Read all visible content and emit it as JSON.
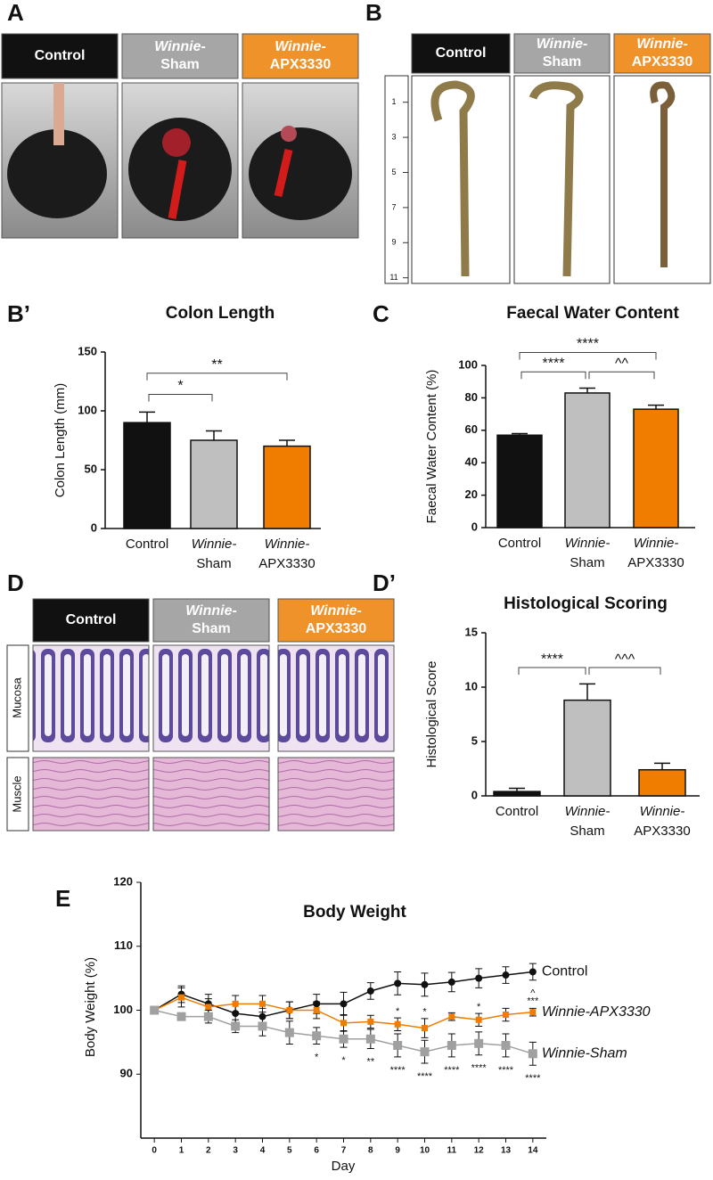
{
  "panels": {
    "A": {
      "letter": "A",
      "headers": [
        [
          "Control"
        ],
        [
          "Winnie-",
          "Sham"
        ],
        [
          "Winnie-",
          "APX3330"
        ]
      ]
    },
    "B": {
      "letter": "B",
      "headers": [
        [
          "Control"
        ],
        [
          "Winnie-",
          "Sham"
        ],
        [
          "Winnie-",
          "APX3330"
        ]
      ],
      "ruler": [
        1,
        3,
        5,
        7,
        9,
        11
      ]
    },
    "D": {
      "letter": "D",
      "headers": [
        [
          "Control"
        ],
        [
          "Winnie-",
          "Sham"
        ],
        [
          "Winnie-",
          "APX3330"
        ]
      ],
      "rows": [
        "Mucosa",
        "Muscle"
      ]
    }
  },
  "chart_data": [
    {
      "type": "bar",
      "letter": "B’",
      "title": "Colon Length",
      "ylabel": "Colon Length (mm)",
      "categories": [
        [
          "Control"
        ],
        [
          "Winnie-",
          "Sham"
        ],
        [
          "Winnie-",
          "APX3330"
        ]
      ],
      "values": [
        90,
        75,
        70
      ],
      "errors": [
        9,
        8,
        5
      ],
      "colors": [
        "#111111",
        "#bfbfbf",
        "#f07c00"
      ],
      "ylim": [
        0,
        150
      ],
      "yticks": [
        0,
        50,
        100,
        150
      ],
      "brackets": [
        {
          "from": 0,
          "to": 1,
          "text": "*"
        },
        {
          "from": 0,
          "to": 2,
          "text": "**"
        }
      ]
    },
    {
      "type": "bar",
      "letter": "C",
      "title": "Faecal Water Content",
      "ylabel": "Faecal Water  Content (%)",
      "categories": [
        [
          "Control"
        ],
        [
          "Winnie-",
          "Sham"
        ],
        [
          "Winnie-",
          "APX3330"
        ]
      ],
      "values": [
        57,
        83,
        73
      ],
      "errors": [
        1,
        3,
        2.5
      ],
      "colors": [
        "#111111",
        "#bfbfbf",
        "#f07c00"
      ],
      "ylim": [
        0,
        100
      ],
      "yticks": [
        0,
        20,
        40,
        60,
        80,
        100
      ],
      "brackets": [
        {
          "from": 0,
          "to": 1,
          "text": "****"
        },
        {
          "from": 1,
          "to": 2,
          "text": "^^"
        },
        {
          "from": 0,
          "to": 2,
          "text": "****"
        }
      ]
    },
    {
      "type": "bar",
      "letter": "D’",
      "title": "Histological Scoring",
      "ylabel": "Histological Score",
      "categories": [
        [
          "Control"
        ],
        [
          "Winnie-",
          "Sham"
        ],
        [
          "Winnie-",
          "APX3330"
        ]
      ],
      "values": [
        0.4,
        8.8,
        2.4
      ],
      "errors": [
        0.3,
        1.5,
        0.6
      ],
      "colors": [
        "#111111",
        "#bfbfbf",
        "#f07c00"
      ],
      "ylim": [
        0,
        15
      ],
      "yticks": [
        0,
        5,
        10,
        15
      ],
      "brackets": [
        {
          "from": 0,
          "to": 1,
          "text": "****"
        },
        {
          "from": 1,
          "to": 2,
          "text": "^^^"
        }
      ]
    },
    {
      "type": "line",
      "letter": "E",
      "title": "Body Weight",
      "xlabel": "Day",
      "ylabel": "Body Weight (%)",
      "x": [
        0,
        1,
        2,
        3,
        4,
        5,
        6,
        7,
        8,
        9,
        10,
        11,
        12,
        13,
        14
      ],
      "xlim": [
        -0.5,
        14.5
      ],
      "xticks": [
        0,
        1,
        2,
        3,
        4,
        5,
        6,
        7,
        8,
        9,
        10,
        11,
        12,
        13,
        14
      ],
      "ylim": [
        80,
        120
      ],
      "yticks": [
        90,
        100,
        110,
        120
      ],
      "series": [
        {
          "name": "Control",
          "color": "#111111",
          "marker": "circle",
          "values": [
            100,
            102.5,
            101,
            99.5,
            99,
            100,
            101,
            101,
            103,
            104.2,
            104,
            104.4,
            105,
            105.5,
            106
          ],
          "errors": [
            0.3,
            1.3,
            1.5,
            1.5,
            1.3,
            1.3,
            1.5,
            1.8,
            1.3,
            1.8,
            1.8,
            1.5,
            1.5,
            1.3,
            1.3
          ]
        },
        {
          "name": "Winnie-APX3330",
          "color": "#f07c00",
          "marker": "square",
          "values": [
            100,
            102,
            100.5,
            101,
            101,
            100,
            100,
            98,
            98.2,
            97.8,
            97.2,
            99,
            98.5,
            99.3,
            99.7
          ],
          "errors": [
            0.3,
            1.5,
            1.3,
            1.3,
            1.3,
            1.3,
            1.3,
            1.3,
            1,
            1,
            1.5,
            0.6,
            1,
            1,
            0.6
          ]
        },
        {
          "name": "Winnie-Sham",
          "color": "#a0a0a0",
          "marker": "square",
          "values": [
            100,
            99,
            99,
            97.5,
            97.5,
            96.5,
            96,
            95.5,
            95.5,
            94.5,
            93.5,
            94.5,
            94.8,
            94.5,
            93.2
          ],
          "errors": [
            0.3,
            0.3,
            1,
            1,
            1.5,
            1.8,
            1.3,
            1.3,
            1.5,
            1.8,
            1.8,
            1.8,
            1.8,
            1.8,
            1.8
          ]
        }
      ],
      "annotations": [
        {
          "series": 2,
          "x": 6,
          "text": "*",
          "position": "below"
        },
        {
          "series": 2,
          "x": 7,
          "text": "*",
          "position": "below"
        },
        {
          "series": 2,
          "x": 8,
          "text": "**",
          "position": "below"
        },
        {
          "series": 2,
          "x": 9,
          "text": "****",
          "position": "below"
        },
        {
          "series": 2,
          "x": 10,
          "text": "****",
          "position": "below"
        },
        {
          "series": 2,
          "x": 11,
          "text": "****",
          "position": "below"
        },
        {
          "series": 2,
          "x": 12,
          "text": "****",
          "position": "below"
        },
        {
          "series": 2,
          "x": 13,
          "text": "****",
          "position": "below"
        },
        {
          "series": 2,
          "x": 14,
          "text": "****",
          "position": "below"
        },
        {
          "series": 1,
          "x": 9,
          "text": "*",
          "position": "above"
        },
        {
          "series": 1,
          "x": 10,
          "text": "*",
          "position": "above"
        },
        {
          "series": 1,
          "x": 12,
          "text": "*",
          "position": "above"
        },
        {
          "series": 0,
          "x": 14,
          "text": "^",
          "position": "below"
        },
        {
          "series": 0,
          "x": 14,
          "text": "***",
          "position": "below"
        }
      ]
    }
  ]
}
